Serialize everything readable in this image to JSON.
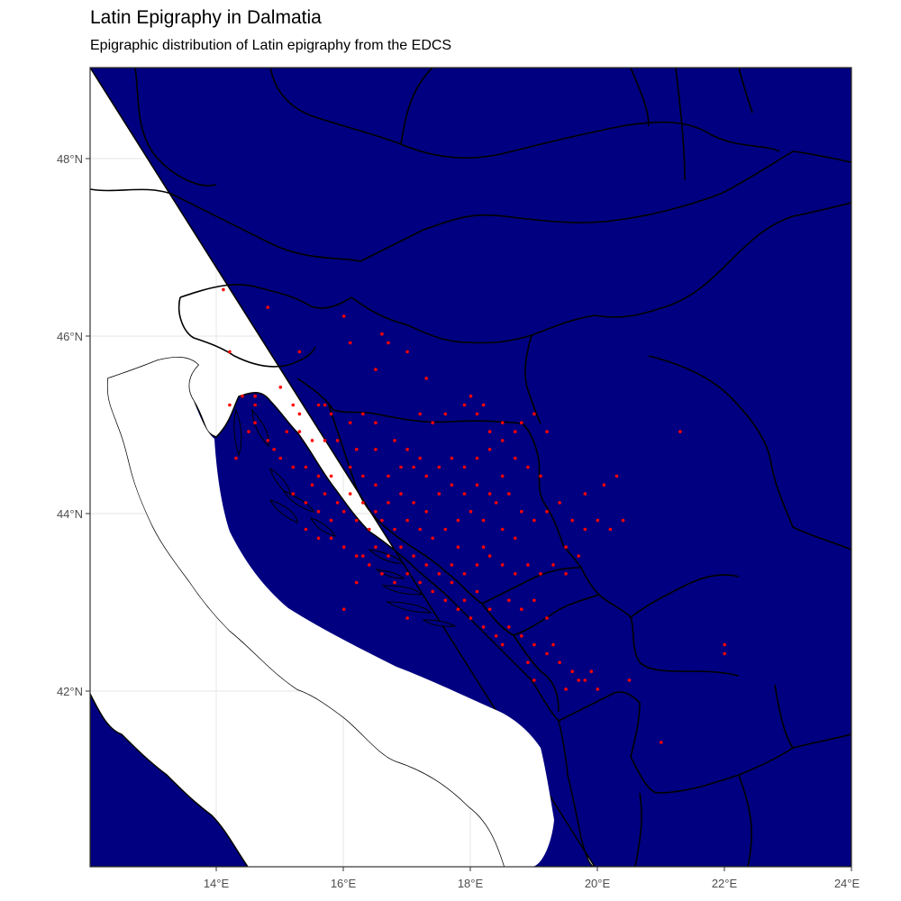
{
  "title": "Latin Epigraphy in Dalmatia",
  "subtitle": "Epigraphic distribution of Latin epigraphy from the EDCS",
  "colors": {
    "land": "#000080",
    "sea": "#ffffff",
    "points": "#ff0000",
    "borders": "#000000",
    "grid": "#ebebeb",
    "panel_border": "#333333"
  },
  "x_ticks": [
    "14°E",
    "16°E",
    "18°E",
    "20°E",
    "22°E",
    "24°E"
  ],
  "y_ticks": [
    "48°N",
    "46°N",
    "44°N",
    "42°N"
  ],
  "chart_data": {
    "type": "scatter",
    "title": "Latin Epigraphy in Dalmatia",
    "subtitle": "Epigraphic distribution of Latin epigraphy from the EDCS",
    "xlim": [
      12,
      24
    ],
    "ylim": [
      40,
      49
    ],
    "x_ticks": [
      14,
      16,
      18,
      20,
      22,
      24
    ],
    "y_ticks": [
      48,
      46,
      44,
      42
    ],
    "grid": true,
    "points": [
      [
        14.1,
        46.5
      ],
      [
        14.8,
        46.3
      ],
      [
        16.0,
        46.2
      ],
      [
        16.1,
        45.9
      ],
      [
        15.3,
        45.8
      ],
      [
        14.2,
        45.8
      ],
      [
        16.6,
        46.0
      ],
      [
        16.7,
        45.9
      ],
      [
        14.4,
        45.3
      ],
      [
        14.6,
        45.3
      ],
      [
        14.6,
        45.2
      ],
      [
        14.2,
        45.2
      ],
      [
        15.2,
        45.2
      ],
      [
        15.3,
        45.1
      ],
      [
        15.6,
        45.2
      ],
      [
        15.7,
        45.2
      ],
      [
        15.8,
        45.1
      ],
      [
        16.1,
        45.0
      ],
      [
        16.3,
        45.1
      ],
      [
        16.5,
        45.0
      ],
      [
        15.1,
        44.9
      ],
      [
        15.3,
        44.9
      ],
      [
        15.5,
        44.8
      ],
      [
        15.7,
        44.8
      ],
      [
        15.9,
        44.8
      ],
      [
        16.2,
        44.7
      ],
      [
        16.5,
        44.7
      ],
      [
        16.8,
        44.8
      ],
      [
        15.0,
        44.6
      ],
      [
        15.2,
        44.5
      ],
      [
        15.4,
        44.5
      ],
      [
        15.6,
        44.4
      ],
      [
        15.8,
        44.4
      ],
      [
        16.1,
        44.5
      ],
      [
        16.3,
        44.4
      ],
      [
        16.5,
        44.3
      ],
      [
        16.7,
        44.4
      ],
      [
        16.9,
        44.5
      ],
      [
        17.1,
        44.5
      ],
      [
        17.3,
        44.4
      ],
      [
        17.5,
        44.5
      ],
      [
        17.7,
        44.6
      ],
      [
        17.9,
        44.5
      ],
      [
        18.1,
        44.6
      ],
      [
        18.3,
        44.7
      ],
      [
        18.5,
        44.8
      ],
      [
        18.7,
        44.6
      ],
      [
        18.9,
        44.5
      ],
      [
        19.1,
        44.4
      ],
      [
        17.2,
        45.1
      ],
      [
        17.4,
        45.0
      ],
      [
        17.6,
        45.1
      ],
      [
        17.9,
        45.2
      ],
      [
        18.1,
        45.1
      ],
      [
        18.3,
        44.9
      ],
      [
        18.5,
        45.0
      ],
      [
        18.7,
        44.9
      ],
      [
        19.0,
        45.1
      ],
      [
        17.0,
        45.8
      ],
      [
        17.3,
        45.5
      ],
      [
        18.0,
        45.3
      ],
      [
        18.2,
        45.2
      ],
      [
        18.8,
        45.0
      ],
      [
        19.2,
        44.9
      ],
      [
        15.2,
        44.2
      ],
      [
        15.4,
        44.1
      ],
      [
        15.6,
        44.0
      ],
      [
        15.8,
        43.9
      ],
      [
        16.0,
        44.0
      ],
      [
        16.2,
        43.9
      ],
      [
        16.4,
        43.8
      ],
      [
        16.6,
        43.9
      ],
      [
        16.8,
        43.8
      ],
      [
        17.0,
        43.9
      ],
      [
        17.2,
        43.8
      ],
      [
        17.4,
        43.7
      ],
      [
        17.6,
        43.8
      ],
      [
        17.8,
        43.9
      ],
      [
        18.0,
        44.0
      ],
      [
        18.2,
        43.9
      ],
      [
        18.4,
        44.1
      ],
      [
        18.6,
        44.2
      ],
      [
        18.8,
        44.0
      ],
      [
        19.0,
        43.9
      ],
      [
        19.2,
        44.0
      ],
      [
        19.4,
        44.1
      ],
      [
        19.6,
        43.9
      ],
      [
        19.8,
        43.8
      ],
      [
        20.0,
        43.9
      ],
      [
        20.2,
        43.8
      ],
      [
        20.4,
        43.9
      ],
      [
        20.1,
        44.3
      ],
      [
        20.3,
        44.4
      ],
      [
        19.8,
        44.2
      ],
      [
        19.5,
        43.6
      ],
      [
        19.7,
        43.5
      ],
      [
        15.5,
        44.3
      ],
      [
        15.7,
        44.2
      ],
      [
        15.9,
        44.1
      ],
      [
        16.1,
        44.2
      ],
      [
        16.3,
        44.1
      ],
      [
        16.5,
        44.0
      ],
      [
        16.7,
        44.1
      ],
      [
        16.9,
        44.2
      ],
      [
        17.1,
        44.1
      ],
      [
        17.3,
        44.0
      ],
      [
        17.5,
        44.2
      ],
      [
        17.7,
        44.3
      ],
      [
        17.9,
        44.2
      ],
      [
        18.1,
        44.3
      ],
      [
        18.3,
        44.2
      ],
      [
        18.5,
        44.4
      ],
      [
        16.0,
        43.6
      ],
      [
        16.3,
        43.5
      ],
      [
        16.5,
        43.6
      ],
      [
        16.7,
        43.5
      ],
      [
        16.9,
        43.6
      ],
      [
        17.1,
        43.5
      ],
      [
        17.3,
        43.4
      ],
      [
        17.5,
        43.3
      ],
      [
        17.7,
        43.4
      ],
      [
        17.9,
        43.3
      ],
      [
        18.1,
        43.4
      ],
      [
        18.3,
        43.5
      ],
      [
        18.5,
        43.4
      ],
      [
        18.7,
        43.3
      ],
      [
        18.9,
        43.4
      ],
      [
        19.1,
        43.3
      ],
      [
        19.3,
        43.4
      ],
      [
        19.5,
        43.3
      ],
      [
        17.2,
        43.2
      ],
      [
        17.4,
        43.1
      ],
      [
        17.6,
        43.0
      ],
      [
        17.8,
        42.9
      ],
      [
        18.0,
        42.8
      ],
      [
        18.2,
        42.7
      ],
      [
        18.4,
        42.6
      ],
      [
        18.6,
        42.7
      ],
      [
        18.8,
        42.6
      ],
      [
        19.0,
        42.5
      ],
      [
        19.2,
        42.4
      ],
      [
        19.4,
        42.3
      ],
      [
        19.6,
        42.2
      ],
      [
        19.8,
        42.1
      ],
      [
        19.5,
        42.0
      ],
      [
        19.7,
        42.1
      ],
      [
        19.9,
        42.2
      ],
      [
        20.0,
        42.0
      ],
      [
        19.3,
        42.5
      ],
      [
        18.9,
        42.3
      ],
      [
        19.0,
        42.1
      ],
      [
        18.5,
        42.5
      ],
      [
        18.3,
        42.9
      ],
      [
        18.1,
        43.1
      ],
      [
        17.9,
        43.0
      ],
      [
        17.7,
        43.2
      ],
      [
        18.6,
        43.0
      ],
      [
        18.8,
        42.9
      ],
      [
        19.0,
        43.0
      ],
      [
        19.2,
        42.8
      ],
      [
        16.4,
        43.4
      ],
      [
        16.2,
        43.5
      ],
      [
        16.6,
        43.3
      ],
      [
        16.8,
        43.2
      ],
      [
        17.0,
        43.3
      ],
      [
        15.6,
        43.7
      ],
      [
        15.4,
        43.8
      ],
      [
        15.8,
        43.7
      ],
      [
        14.8,
        44.8
      ],
      [
        14.9,
        44.7
      ],
      [
        14.6,
        45.0
      ],
      [
        14.5,
        44.9
      ],
      [
        14.3,
        44.6
      ],
      [
        20.5,
        42.1
      ],
      [
        21.0,
        41.4
      ],
      [
        21.3,
        44.9
      ],
      [
        22.0,
        42.5
      ],
      [
        22.0,
        42.4
      ],
      [
        15.0,
        45.4
      ],
      [
        16.5,
        45.6
      ],
      [
        18.5,
        43.8
      ],
      [
        18.7,
        43.7
      ],
      [
        18.2,
        43.6
      ],
      [
        17.8,
        43.6
      ],
      [
        17.0,
        44.7
      ],
      [
        17.2,
        44.6
      ],
      [
        16.2,
        43.2
      ],
      [
        16.0,
        42.9
      ],
      [
        17.0,
        42.8
      ]
    ]
  }
}
